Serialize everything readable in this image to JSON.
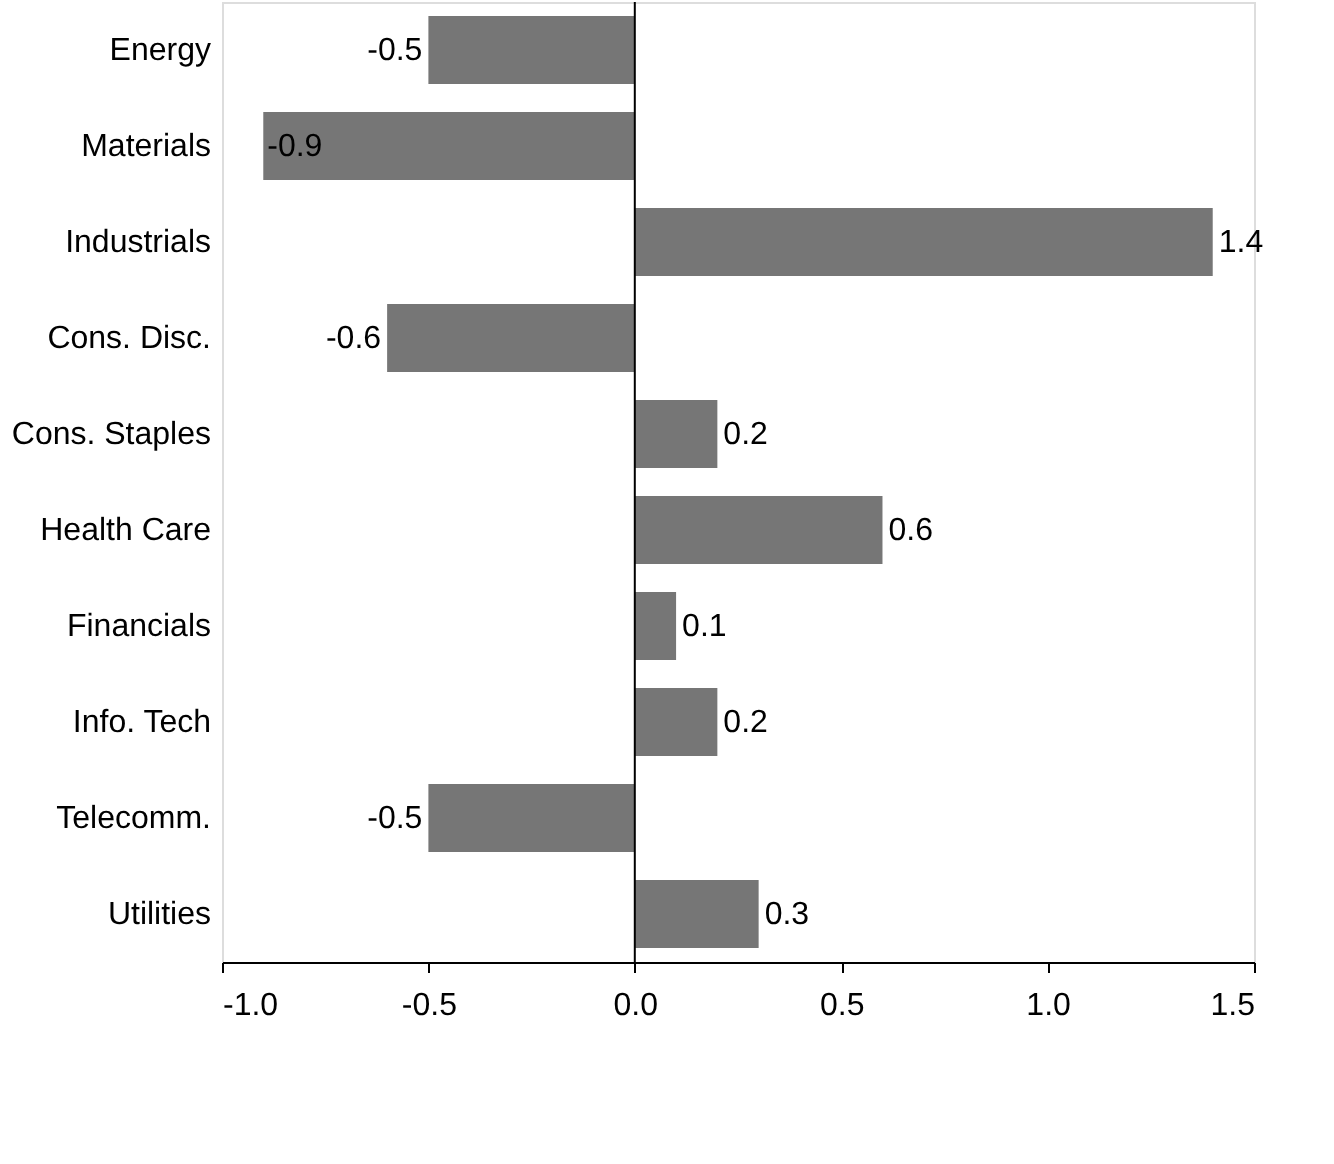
{
  "chart_data": {
    "type": "bar",
    "orientation": "horizontal",
    "categories": [
      "Energy",
      "Materials",
      "Industrials",
      "Cons. Disc.",
      "Cons. Staples",
      "Health Care",
      "Financials",
      "Info. Tech",
      "Telecomm.",
      "Utilities"
    ],
    "values": [
      -0.5,
      -0.9,
      1.4,
      -0.6,
      0.2,
      0.6,
      0.1,
      0.2,
      -0.5,
      0.3
    ],
    "color": "#767676",
    "data_labels": true,
    "xlim": [
      -1.0,
      1.5
    ],
    "xticks": [
      {
        "value": -1,
        "label": "-1.0"
      },
      -0.5,
      {
        "value": 0,
        "label": "0.0"
      },
      0.5,
      {
        "value": 1,
        "label": "1.0"
      },
      1.5
    ],
    "ref_lines": [
      {
        "axis": "x",
        "value": 0,
        "color": "#000000"
      }
    ],
    "grid": false
  }
}
